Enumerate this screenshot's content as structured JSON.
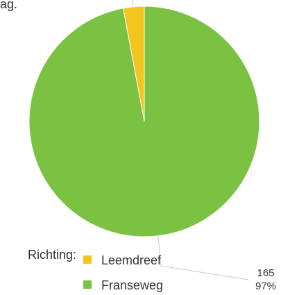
{
  "fragment_text": "ag.",
  "chart_data": {
    "type": "pie",
    "legend_title": "Richting:",
    "legend_position": "bottom-left",
    "series": [
      {
        "name": "Leemdreef",
        "value": 5,
        "color": "#f2c61f"
      },
      {
        "name": "Franseweg",
        "value": 165,
        "color": "#7cc242"
      }
    ],
    "data_labels": [
      {
        "series": "Franseweg",
        "value": "165",
        "percent": "97%"
      }
    ]
  }
}
